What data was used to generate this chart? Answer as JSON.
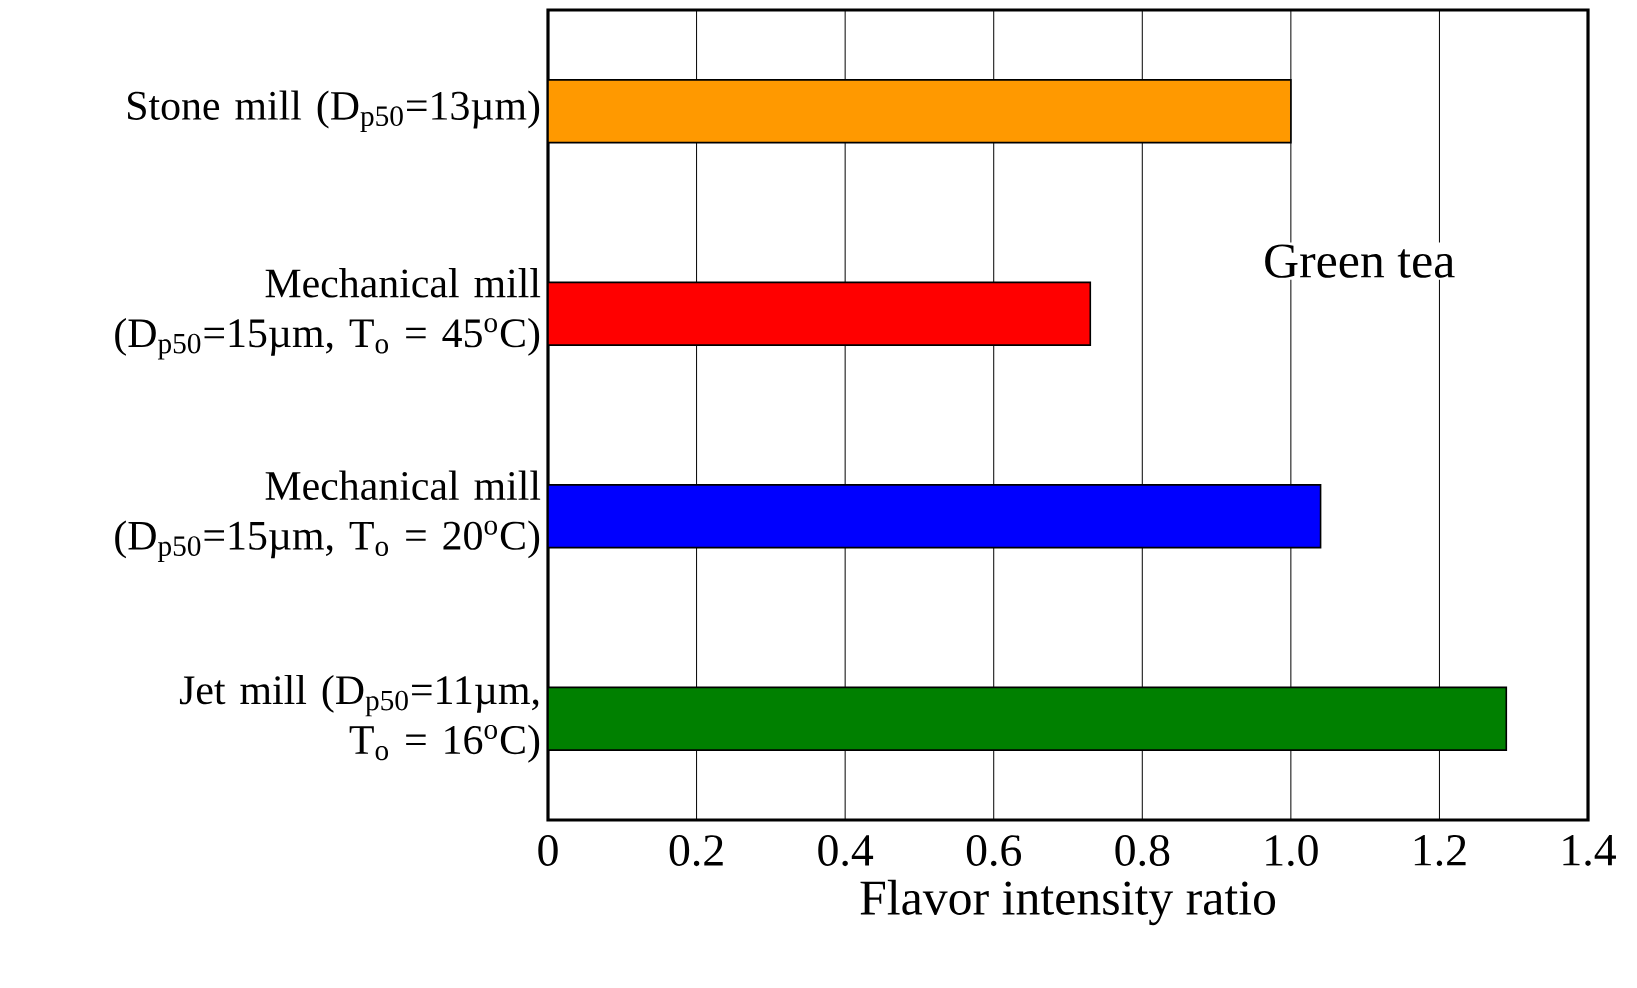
{
  "chart_data": {
    "type": "bar",
    "orientation": "horizontal",
    "xlabel": "Flavor intensity ratio",
    "categories": [
      "Stone mill (D$_{p50}$=13µm)",
      "Mechanical mill (D$_{p50}$=15µm, T$_{o}$ = 45$^{o}$C)",
      "Mechanical mill (D$_{p50}$=15µm, T$_{o}$ = 20$^{o}$C)",
      "Jet mill (D$_{p50}$=11µm, T$_{o}$ = 16$^{o}$C)"
    ],
    "values": [
      1.0,
      0.73,
      1.04,
      1.29
    ],
    "colors": [
      "#ff9900",
      "#ff0000",
      "#0000ff",
      "#008000"
    ],
    "xlim": [
      0,
      1.4
    ],
    "xticks": [
      0,
      0.2,
      0.4,
      0.6,
      0.8,
      {
        "value": 1.0,
        "label": "1.0"
      },
      1.2,
      1.4
    ],
    "grid": "x",
    "annotations": [
      "Green tea"
    ]
  }
}
